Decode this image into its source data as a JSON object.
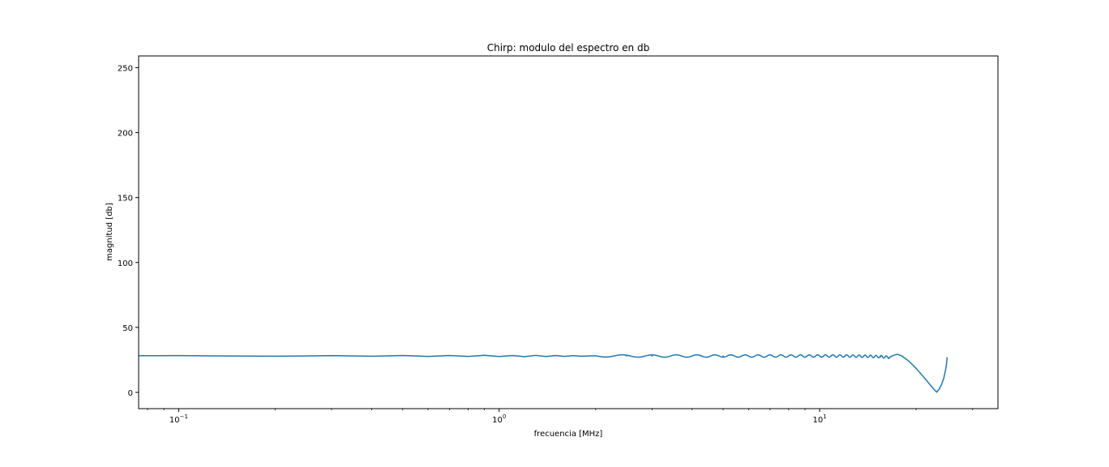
{
  "chart_data": {
    "type": "line",
    "title": "Chirp: modulo del espectro en db",
    "xlabel": "frecuencia [MHz]",
    "ylabel": "magnitud [db]",
    "xscale": "log",
    "xlim": [
      0.075,
      36
    ],
    "ylim": [
      -12.5,
      259
    ],
    "x_major_ticks": [
      {
        "value": 0.1,
        "base": "10",
        "exp": "−1"
      },
      {
        "value": 1,
        "base": "10",
        "exp": "0"
      },
      {
        "value": 10,
        "base": "10",
        "exp": "1"
      }
    ],
    "y_ticks": [
      {
        "value": 0,
        "label": "0"
      },
      {
        "value": 50,
        "label": "50"
      },
      {
        "value": 100,
        "label": "100"
      },
      {
        "value": 150,
        "label": "150"
      },
      {
        "value": 200,
        "label": "200"
      },
      {
        "value": 250,
        "label": "250"
      }
    ],
    "grid": false,
    "legend": "none",
    "series": [
      {
        "color": "#1f77b4",
        "description": "Nearly flat spectrum around 28 dB with ripple that becomes denser at higher frequencies, a small peak near 17.5 MHz, a drop to about 0 dB near 23 MHz, then a sharp rise to about 27 dB at 25 MHz.",
        "points": [
          [
            0.075,
            28.2
          ],
          [
            0.1,
            28.3
          ],
          [
            0.15,
            28.0
          ],
          [
            0.2,
            27.8
          ],
          [
            0.3,
            28.3
          ],
          [
            0.4,
            27.8
          ],
          [
            0.5,
            28.4
          ],
          [
            0.6,
            27.7
          ],
          [
            0.7,
            28.4
          ],
          [
            0.8,
            27.7
          ],
          [
            0.9,
            28.5
          ],
          [
            1.0,
            27.6
          ],
          [
            1.1,
            28.4
          ],
          [
            1.2,
            27.5
          ],
          [
            1.3,
            28.5
          ],
          [
            1.4,
            27.6
          ],
          [
            1.5,
            28.4
          ],
          [
            1.6,
            27.7
          ],
          [
            1.7,
            28.3
          ],
          [
            1.8,
            27.8
          ],
          [
            2.0,
            28.2
          ],
          [
            2.5,
            28.0
          ],
          [
            3.0,
            28.0
          ],
          [
            4.0,
            28.0
          ],
          [
            5.0,
            28.0
          ],
          [
            6.0,
            28.0
          ],
          [
            8.0,
            28.0
          ],
          [
            10.0,
            28.0
          ],
          [
            12.0,
            28.0
          ],
          [
            14.0,
            27.8
          ],
          [
            15.5,
            27.5
          ],
          [
            16.5,
            27.0
          ],
          [
            17.0,
            28.5
          ],
          [
            17.5,
            29.3
          ],
          [
            18.0,
            28.2
          ],
          [
            19.0,
            24.0
          ],
          [
            20.0,
            18.5
          ],
          [
            21.0,
            12.5
          ],
          [
            22.0,
            6.5
          ],
          [
            22.8,
            2.0
          ],
          [
            23.2,
            0.2
          ],
          [
            23.6,
            2.5
          ],
          [
            24.0,
            6.0
          ],
          [
            24.4,
            11.0
          ],
          [
            24.7,
            17.0
          ],
          [
            24.9,
            22.5
          ],
          [
            25.0,
            27.0
          ]
        ]
      }
    ]
  }
}
